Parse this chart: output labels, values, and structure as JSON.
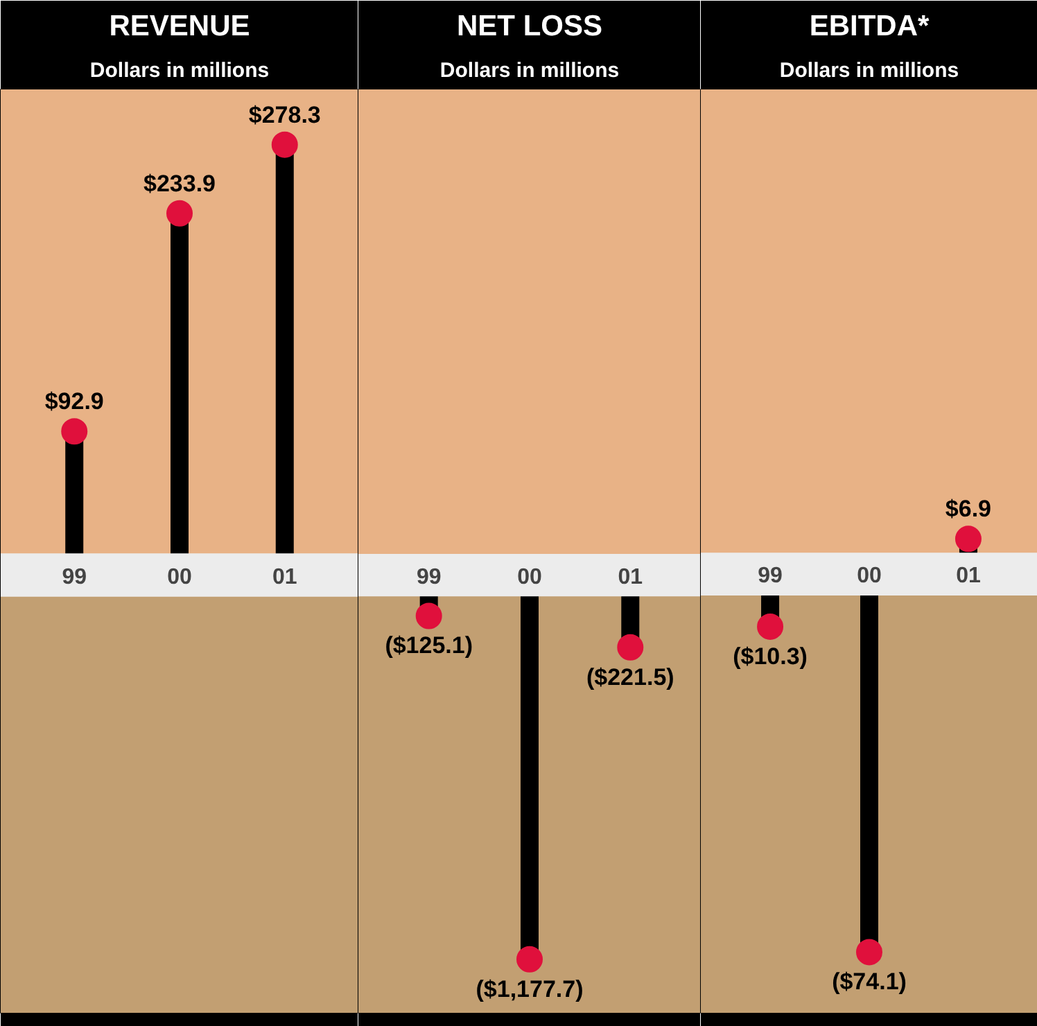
{
  "chart_data": [
    {
      "type": "lollipop",
      "title": "REVENUE",
      "subtitle": "Dollars in millions",
      "categories": [
        "99",
        "00",
        "01"
      ],
      "ylim": [
        -283,
        314
      ],
      "bands": [
        {
          "axis": "y",
          "from": -283,
          "to": 0,
          "color": "#c29f72"
        },
        {
          "axis": "y",
          "from": 0,
          "to": 314,
          "color": "#e8b286"
        },
        {
          "axis": "y",
          "from": -14,
          "to": 14,
          "color": "#ececec"
        }
      ],
      "series": [
        {
          "color": "#e0103c",
          "values": [
            92.9,
            233.9,
            278.3
          ],
          "value_labels": [
            "$92.9",
            "$233.9",
            "$278.3"
          ]
        }
      ]
    },
    {
      "type": "lollipop",
      "title": "NET LOSS",
      "subtitle": "Dollars in millions",
      "categories": [
        "99",
        "00",
        "01"
      ],
      "ylim": [
        -1342,
        1489
      ],
      "bands": [
        {
          "axis": "y",
          "from": -1342,
          "to": 0,
          "color": "#c29f72"
        },
        {
          "axis": "y",
          "from": 0,
          "to": 1489,
          "color": "#e8b286"
        },
        {
          "axis": "y",
          "from": -65,
          "to": 65,
          "color": "#ececec"
        }
      ],
      "series": [
        {
          "color": "#e0103c",
          "values": [
            -125.1,
            -1177.7,
            -221.5
          ],
          "value_labels": [
            "($125.1)",
            "($1,177.7)",
            "($221.5)"
          ]
        }
      ]
    },
    {
      "type": "lollipop",
      "title": "EBITDA*",
      "subtitle": "Dollars in millions",
      "categories": [
        "99",
        "00",
        "01"
      ],
      "ylim": [
        -86,
        95
      ],
      "bands": [
        {
          "axis": "y",
          "from": -86,
          "to": 0,
          "color": "#c29f72"
        },
        {
          "axis": "y",
          "from": 0,
          "to": 95,
          "color": "#e8b286"
        },
        {
          "axis": "y",
          "from": -4.2,
          "to": 4.2,
          "color": "#ececec"
        }
      ],
      "series": [
        {
          "color": "#e0103c",
          "values": [
            -10.3,
            -74.1,
            6.9
          ],
          "value_labels": [
            "($10.3)",
            "($74.1)",
            "$6.9"
          ]
        }
      ]
    }
  ]
}
